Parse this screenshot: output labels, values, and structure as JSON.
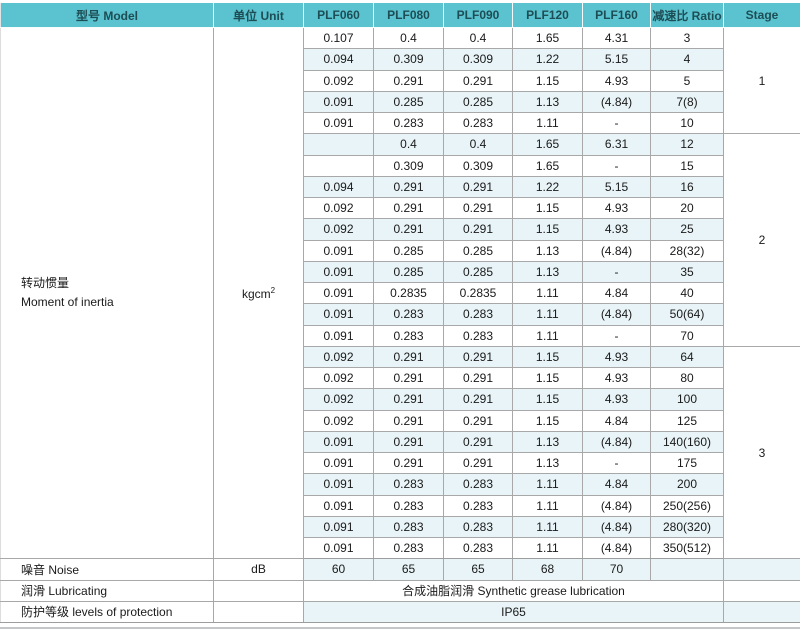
{
  "table": {
    "header": {
      "model": "型号 Model",
      "unit": "单位 Unit",
      "columns": [
        "PLF060",
        "PLF080",
        "PLF090",
        "PLF120",
        "PLF160"
      ],
      "ratio": "减速比 Ratio",
      "stage": "Stage"
    },
    "inertia": {
      "label_cn": "转动惯量",
      "label_en": "Moment of inertia",
      "unit_base": "kgcm",
      "unit_exp": "2",
      "stages": [
        {
          "stage": "1",
          "rows": [
            {
              "values": [
                "0.107",
                "0.4",
                "0.4",
                "1.65",
                "4.31"
              ],
              "ratio": "3"
            },
            {
              "values": [
                "0.094",
                "0.309",
                "0.309",
                "1.22",
                "5.15"
              ],
              "ratio": "4"
            },
            {
              "values": [
                "0.092",
                "0.291",
                "0.291",
                "1.15",
                "4.93"
              ],
              "ratio": "5"
            },
            {
              "values": [
                "0.091",
                "0.285",
                "0.285",
                "1.13",
                "(4.84)"
              ],
              "ratio": "7(8)"
            },
            {
              "values": [
                "0.091",
                "0.283",
                "0.283",
                "1.11",
                "-"
              ],
              "ratio": "10"
            }
          ]
        },
        {
          "stage": "2",
          "rows": [
            {
              "values": [
                "",
                "0.4",
                "0.4",
                "1.65",
                "6.31"
              ],
              "ratio": "12"
            },
            {
              "values": [
                "",
                "0.309",
                "0.309",
                "1.65",
                "-"
              ],
              "ratio": "15"
            },
            {
              "values": [
                "0.094",
                "0.291",
                "0.291",
                "1.22",
                "5.15"
              ],
              "ratio": "16"
            },
            {
              "values": [
                "0.092",
                "0.291",
                "0.291",
                "1.15",
                "4.93"
              ],
              "ratio": "20"
            },
            {
              "values": [
                "0.092",
                "0.291",
                "0.291",
                "1.15",
                "4.93"
              ],
              "ratio": "25"
            },
            {
              "values": [
                "0.091",
                "0.285",
                "0.285",
                "1.13",
                "(4.84)"
              ],
              "ratio": "28(32)"
            },
            {
              "values": [
                "0.091",
                "0.285",
                "0.285",
                "1.13",
                "-"
              ],
              "ratio": "35"
            },
            {
              "values": [
                "0.091",
                "0.2835",
                "0.2835",
                "1.11",
                "4.84"
              ],
              "ratio": "40"
            },
            {
              "values": [
                "0.091",
                "0.283",
                "0.283",
                "1.11",
                "(4.84)"
              ],
              "ratio": "50(64)"
            },
            {
              "values": [
                "0.091",
                "0.283",
                "0.283",
                "1.11",
                "-"
              ],
              "ratio": "70"
            }
          ]
        },
        {
          "stage": "3",
          "rows": [
            {
              "values": [
                "0.092",
                "0.291",
                "0.291",
                "1.15",
                "4.93"
              ],
              "ratio": "64"
            },
            {
              "values": [
                "0.092",
                "0.291",
                "0.291",
                "1.15",
                "4.93"
              ],
              "ratio": "80"
            },
            {
              "values": [
                "0.092",
                "0.291",
                "0.291",
                "1.15",
                "4.93"
              ],
              "ratio": "100"
            },
            {
              "values": [
                "0.092",
                "0.291",
                "0.291",
                "1.15",
                "4.84"
              ],
              "ratio": "125"
            },
            {
              "values": [
                "0.091",
                "0.291",
                "0.291",
                "1.13",
                "(4.84)"
              ],
              "ratio": "140(160)"
            },
            {
              "values": [
                "0.091",
                "0.291",
                "0.291",
                "1.13",
                "-"
              ],
              "ratio": "175"
            },
            {
              "values": [
                "0.091",
                "0.283",
                "0.283",
                "1.11",
                "4.84"
              ],
              "ratio": "200"
            },
            {
              "values": [
                "0.091",
                "0.283",
                "0.283",
                "1.11",
                "(4.84)"
              ],
              "ratio": "250(256)"
            },
            {
              "values": [
                "0.091",
                "0.283",
                "0.283",
                "1.11",
                "(4.84)"
              ],
              "ratio": "280(320)"
            },
            {
              "values": [
                "0.091",
                "0.283",
                "0.283",
                "1.11",
                "(4.84)"
              ],
              "ratio": "350(512)"
            }
          ]
        }
      ]
    },
    "noise": {
      "label": "噪音 Noise",
      "unit": "dB",
      "values": [
        "60",
        "65",
        "65",
        "68",
        "70"
      ]
    },
    "lubricating": {
      "label": "润滑 Lubricating",
      "value": "合成油脂润滑 Synthetic grease lubrication"
    },
    "protection": {
      "label": "防护等级 levels of protection",
      "value": "IP65"
    }
  },
  "colors": {
    "header_bg": "#5ac3cf",
    "header_text": "#1d4d55",
    "stripe_bg": "#e9f4f8",
    "border": "#a8a8a8"
  }
}
